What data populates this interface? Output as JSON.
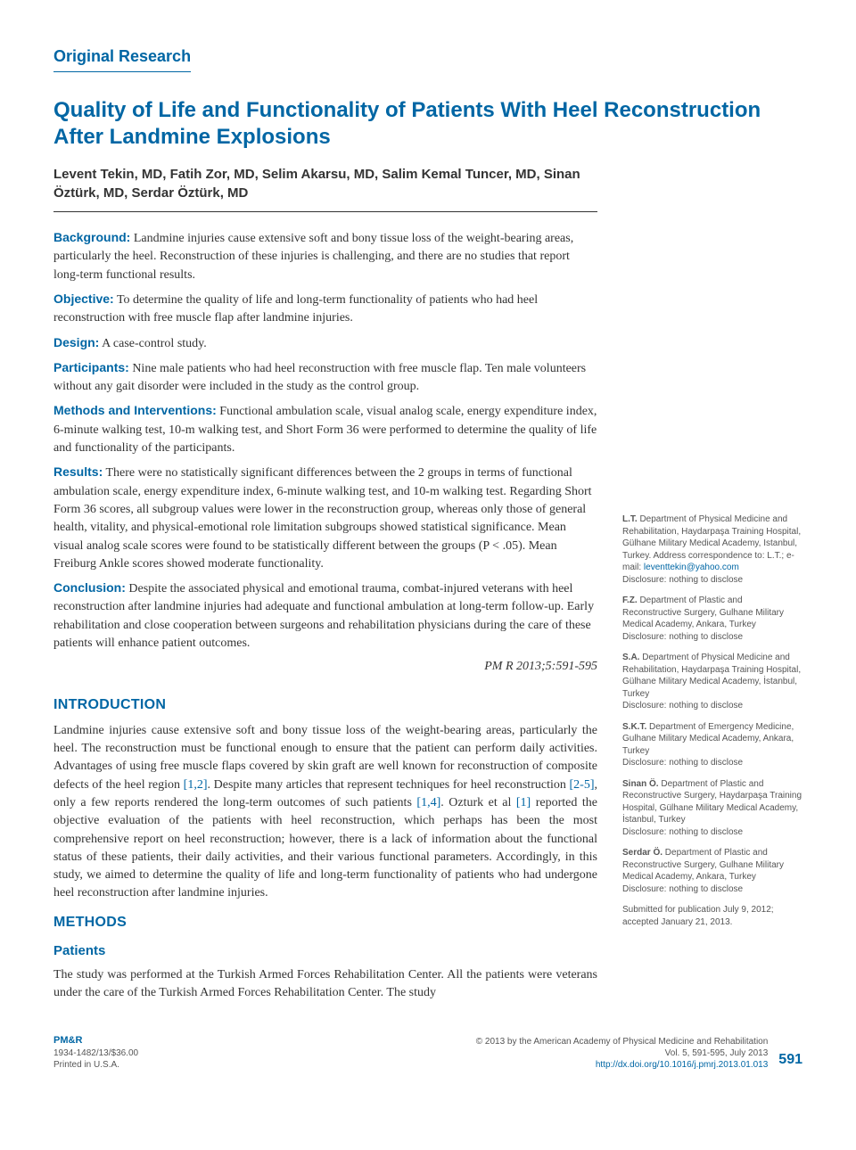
{
  "section_label": "Original Research",
  "title": "Quality of Life and Functionality of Patients With Heel Reconstruction After Landmine Explosions",
  "authors": "Levent Tekin, MD, Fatih Zor, MD, Selim Akarsu, MD, Salim Kemal Tuncer, MD, Sinan Öztürk, MD, Serdar Öztürk, MD",
  "abstract": {
    "background": {
      "label": "Background:",
      "text": " Landmine injuries cause extensive soft and bony tissue loss of the weight-bearing areas, particularly the heel. Reconstruction of these injuries is challenging, and there are no studies that report long-term functional results."
    },
    "objective": {
      "label": "Objective:",
      "text": " To determine the quality of life and long-term functionality of patients who had heel reconstruction with free muscle flap after landmine injuries."
    },
    "design": {
      "label": "Design:",
      "text": " A case-control study."
    },
    "participants": {
      "label": "Participants:",
      "text": " Nine male patients who had heel reconstruction with free muscle flap. Ten male volunteers without any gait disorder were included in the study as the control group."
    },
    "methods": {
      "label": "Methods and Interventions:",
      "text": " Functional ambulation scale, visual analog scale, energy expenditure index, 6-minute walking test, 10-m walking test, and Short Form 36 were performed to determine the quality of life and functionality of the participants."
    },
    "results": {
      "label": "Results:",
      "text": " There were no statistically significant differences between the 2 groups in terms of functional ambulation scale, energy expenditure index, 6-minute walking test, and 10-m walking test. Regarding Short Form 36 scores, all subgroup values were lower in the reconstruction group, whereas only those of general health, vitality, and physical-emotional role limitation subgroups showed statistical significance. Mean visual analog scale scores were found to be statistically different between the groups (P < .05). Mean Freiburg Ankle scores showed moderate functionality."
    },
    "conclusion": {
      "label": "Conclusion:",
      "text": " Despite the associated physical and emotional trauma, combat-injured veterans with heel reconstruction after landmine injuries had adequate and functional ambulation at long-term follow-up. Early rehabilitation and close cooperation between surgeons and rehabilitation physicians during the care of these patients will enhance patient outcomes."
    }
  },
  "citation": "PM R 2013;5:591-595",
  "headings": {
    "introduction": "INTRODUCTION",
    "methods": "METHODS",
    "patients": "Patients"
  },
  "intro_p1a": "Landmine injuries cause extensive soft and bony tissue loss of the weight-bearing areas, particularly the heel. The reconstruction must be functional enough to ensure that the patient can perform daily activities. Advantages of using free muscle flaps covered by skin graft are well known for reconstruction of composite defects of the heel region ",
  "intro_ref1": "[1,2]",
  "intro_p1b": ". Despite many articles that represent techniques for heel reconstruction ",
  "intro_ref2": "[2-5]",
  "intro_p1c": ", only a few reports rendered the long-term outcomes of such patients ",
  "intro_ref3": "[1,4]",
  "intro_p1d": ". Ozturk et al ",
  "intro_ref4": "[1]",
  "intro_p1e": " reported the objective evaluation of the patients with heel reconstruction, which perhaps has been the most comprehensive report on heel reconstruction; however, there is a lack of information about the functional status of these patients, their daily activities, and their various functional parameters. Accordingly, in this study, we aimed to determine the quality of life and long-term functionality of patients who had undergone heel reconstruction after landmine injuries.",
  "methods_p1": "The study was performed at the Turkish Armed Forces Rehabilitation Center. All the patients were veterans under the care of the Turkish Armed Forces Rehabilitation Center. The study",
  "affiliations": [
    {
      "init": "L.T.",
      "text": " Department of Physical Medicine and Rehabilitation, Haydarpaşa Training Hospital, Gülhane Military Medical Academy, Istanbul, Turkey. Address correspondence to: L.T.; e-mail: ",
      "email": "leventtekin@yahoo.com",
      "disc": "Disclosure: nothing to disclose"
    },
    {
      "init": "F.Z.",
      "text": " Department of Plastic and Reconstructive Surgery, Gulhane Military Medical Academy, Ankara, Turkey",
      "disc": "Disclosure: nothing to disclose"
    },
    {
      "init": "S.A.",
      "text": " Department of Physical Medicine and Rehabilitation, Haydarpaşa Training Hospital, Gülhane Military Medical Academy, İstanbul, Turkey",
      "disc": "Disclosure: nothing to disclose"
    },
    {
      "init": "S.K.T.",
      "text": " Department of Emergency Medicine, Gulhane Military Medical Academy, Ankara, Turkey",
      "disc": "Disclosure: nothing to disclose"
    },
    {
      "init": "Sinan Ö.",
      "text": " Department of Plastic and Reconstructive Surgery, Haydarpaşa Training Hospital, Gülhane Military Medical Academy, İstanbul, Turkey",
      "disc": "Disclosure: nothing to disclose"
    },
    {
      "init": "Serdar Ö.",
      "text": " Department of Plastic and Reconstructive Surgery, Gulhane Military Medical Academy, Ankara, Turkey",
      "disc": "Disclosure: nothing to disclose"
    }
  ],
  "submitted": "Submitted for publication July 9, 2012; accepted January 21, 2013.",
  "footer": {
    "journal": "PM&R",
    "issn": "1934-1482/13/$36.00",
    "printed": "Printed in U.S.A.",
    "copyright": "© 2013 by the American Academy of Physical Medicine and Rehabilitation",
    "vol": "Vol. 5, 591-595, July 2013",
    "doi": "http://dx.doi.org/10.1016/j.pmrj.2013.01.013",
    "page": "591"
  },
  "colors": {
    "accent": "#0066a4",
    "text": "#333333",
    "side_text": "#555555",
    "background": "#ffffff"
  }
}
